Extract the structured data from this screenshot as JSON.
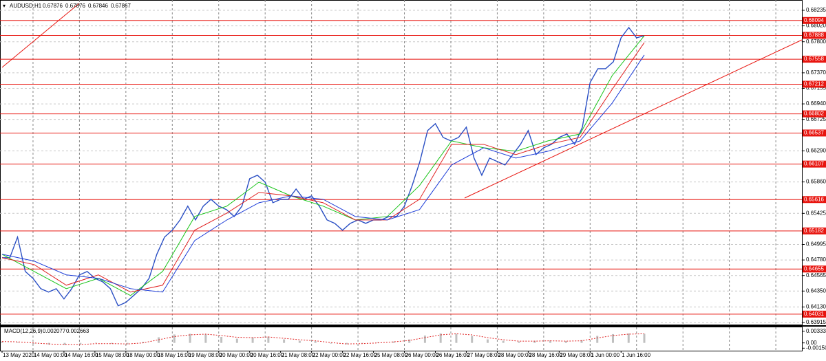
{
  "chart_data": {
    "type": "line",
    "title": "AUDUSD,H1",
    "header_values": [
      0.67876,
      0.67876,
      0.67846,
      0.67867
    ],
    "ylim": [
      0.63877,
      0.6833
    ],
    "yticks": [
      0.68235,
      {
        "value": 0.6802,
        "label": "0.68020"
      },
      {
        "value": 0.678,
        "label": "0.67800"
      },
      {
        "value": 0.6737,
        "label": "0.67370"
      },
      0.67155,
      {
        "value": 0.6694,
        "label": "0.66940"
      },
      0.66725,
      {
        "value": 0.6629,
        "label": "0.66290"
      },
      {
        "value": 0.6586,
        "label": "0.65860"
      },
      0.65425,
      0.64995,
      {
        "value": 0.6478,
        "label": "0.64780"
      },
      0.64565,
      {
        "value": 0.6435,
        "label": "0.64350"
      },
      {
        "value": 0.6413,
        "label": "0.64130"
      },
      0.63915
    ],
    "xtick_labels": [
      "13 May 2020",
      "14 May 00:00",
      "14 May 16:00",
      "15 May 08:00",
      "18 May 00:00",
      "18 May 16:00",
      "19 May 08:00",
      "20 May 00:00",
      "20 May 16:00",
      "21 May 08:00",
      "22 May 00:00",
      "22 May 16:00",
      "25 May 08:00",
      "26 May 00:00",
      "26 May 16:00",
      "27 May 08:00",
      "28 May 00:00",
      "28 May 16:00",
      "29 May 08:00",
      "1 Jun 00:00",
      "1 Jun 16:00"
    ],
    "grid": true,
    "series": [
      {
        "name": "AUDUSD",
        "color": "#2a4fc4",
        "values": [
          0.64811,
          0.64811,
          0.65097,
          0.64621,
          0.64526,
          0.64383,
          0.64336,
          0.64383,
          0.64241,
          0.64383,
          0.64574,
          0.64621,
          0.64526,
          0.64478,
          0.64383,
          0.64146,
          0.64193,
          0.64288,
          0.64383,
          0.64526,
          0.64859,
          0.65097,
          0.65192,
          0.65334,
          0.65525,
          0.65334,
          0.65525,
          0.6562,
          0.65525,
          0.65477,
          0.65382,
          0.65525,
          0.65905,
          0.65953,
          0.65857,
          0.65572,
          0.6562,
          0.6562,
          0.65762,
          0.6562,
          0.65667,
          0.65525,
          0.65334,
          0.65287,
          0.65192,
          0.65287,
          0.65334,
          0.65287,
          0.65334,
          0.65334,
          0.65382,
          0.65382,
          0.65525,
          0.6581,
          0.66143,
          0.66571,
          0.66666,
          0.66476,
          0.66428,
          0.66476,
          0.66618,
          0.6619,
          0.65953,
          0.6619,
          0.66143,
          0.66095,
          0.66238,
          0.6638,
          0.66571,
          0.66238,
          0.66333,
          0.6638,
          0.66476,
          0.66523,
          0.6638,
          0.66618,
          0.67236,
          0.67427,
          0.67427,
          0.67522,
          0.67855,
          0.67997,
          0.67855,
          0.67883
        ]
      },
      {
        "name": "MA fast",
        "color": "#18c418",
        "values": [
          0.64859,
          0.64621,
          0.64383,
          0.64526,
          0.64288,
          0.64621,
          0.65382,
          0.65525,
          0.65857,
          0.65667,
          0.65525,
          0.65334,
          0.65382,
          0.6581,
          0.66428,
          0.66333,
          0.66285,
          0.66428,
          0.66523,
          0.67331,
          0.67883
        ]
      },
      {
        "name": "MA mid",
        "color": "#e02020",
        "values": [
          0.64811,
          0.64716,
          0.64431,
          0.64574,
          0.64336,
          0.64431,
          0.65192,
          0.65429,
          0.65715,
          0.65667,
          0.65572,
          0.65334,
          0.65334,
          0.6562,
          0.6638,
          0.6638,
          0.66238,
          0.6638,
          0.66476,
          0.67141,
          0.67788
        ]
      },
      {
        "name": "MA slow",
        "color": "#1c3cd8",
        "values": [
          0.64859,
          0.64764,
          0.64574,
          0.64526,
          0.64383,
          0.64336,
          0.65049,
          0.65334,
          0.65572,
          0.65667,
          0.6562,
          0.65382,
          0.65334,
          0.65477,
          0.66095,
          0.66333,
          0.6619,
          0.66285,
          0.66428,
          0.66951,
          0.67617
        ]
      }
    ],
    "levels": [
      0.68094,
      0.67888,
      0.67558,
      0.67212,
      0.66802,
      0.66537,
      0.66107,
      0.65616,
      0.65182,
      0.64655,
      0.64031
    ],
    "level_color": "#e8150f",
    "macd": {
      "title": "MACD(12,26,9)",
      "header_values": [
        0.002077,
        0.002663
      ],
      "ylim": [
        -0.002223,
        0.00445
      ],
      "yticks": [
        0.003335,
        {
          "value": 0,
          "label": "0.00"
        },
        -0.001507
      ],
      "histogram": {
        "color": "#c0c0c0",
        "values": [
          0.0004,
          0.0002,
          -0.0003,
          -0.0005,
          -0.0006,
          -0.0004,
          0.0001,
          -0.0002,
          -0.0004,
          0.0003,
          0.0016,
          0.0024,
          0.0026,
          0.0024,
          0.0017,
          0.0012,
          0.0016,
          0.0018,
          0.001,
          0.0006,
          0.0005,
          -0.0002,
          -0.0004,
          -0.0001,
          0.0002,
          0.0004,
          0.001,
          0.0021,
          0.0027,
          0.0026,
          0.002,
          0.001,
          0.0006,
          0.0004,
          0.0006,
          0.0007,
          0.0005,
          0.0008,
          0.002,
          0.0025,
          0.0027,
          0.0026
        ]
      },
      "signal": {
        "color": "#e02020",
        "values": [
          0.0004,
          0.0003,
          0,
          -0.0003,
          -0.0005,
          -0.0005,
          -0.0002,
          -0.0002,
          -0.0003,
          0,
          0.0009,
          0.0018,
          0.0023,
          0.0025,
          0.0021,
          0.0016,
          0.0015,
          0.0017,
          0.0013,
          0.0009,
          0.0006,
          0.0001,
          -0.0003,
          -0.0002,
          0,
          0.0003,
          0.0007,
          0.0015,
          0.0023,
          0.0026,
          0.0023,
          0.0015,
          0.0009,
          0.0005,
          0.0005,
          0.0006,
          0.0005,
          0.0006,
          0.0014,
          0.0021,
          0.0025,
          0.0026
        ]
      }
    }
  }
}
